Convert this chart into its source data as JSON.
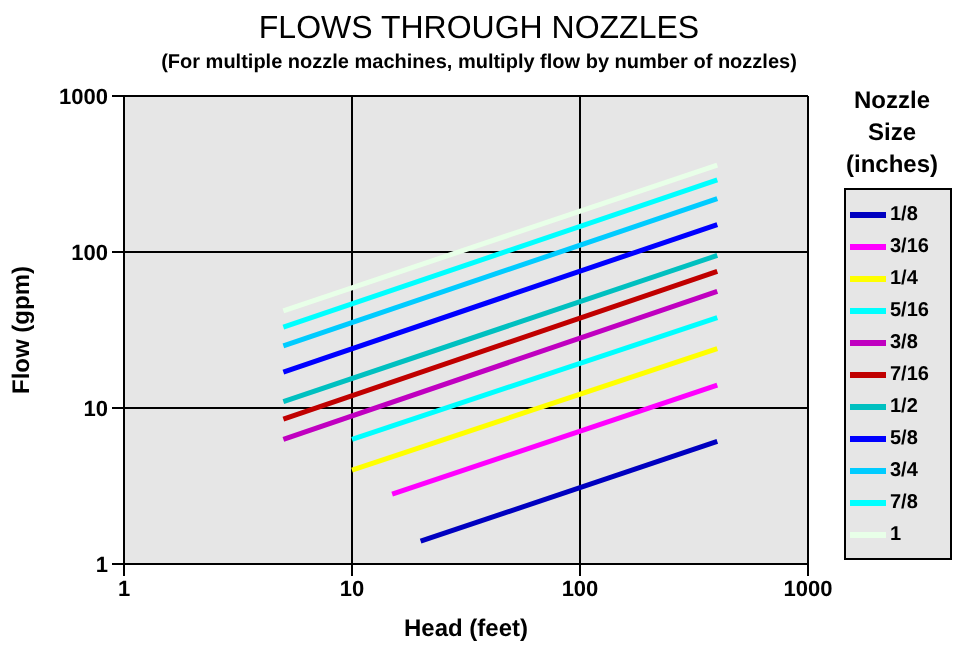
{
  "chart_data": {
    "type": "line",
    "title": "FLOWS THROUGH NOZZLES",
    "subtitle": "(For multiple nozzle machines, multiply flow by number of nozzles)",
    "xlabel": "Head (feet)",
    "ylabel": "Flow (gpm)",
    "legend_title": "Nozzle Size (inches)",
    "log": "xy",
    "grid": true,
    "legend": "right",
    "marker": "none",
    "line_style": "solid",
    "xlim": [
      1,
      1000
    ],
    "ylim": [
      1,
      1000
    ],
    "xticks": [
      1,
      10,
      100,
      1000
    ],
    "yticks": [
      1,
      10,
      100,
      1000
    ],
    "series": [
      {
        "name": "1/8",
        "color": "#0000c0",
        "x": [
          20,
          400
        ],
        "values": [
          1.4,
          6.1
        ]
      },
      {
        "name": "3/16",
        "color": "#ff00ff",
        "x": [
          15,
          400
        ],
        "values": [
          2.8,
          14
        ]
      },
      {
        "name": "1/4",
        "color": "#ffff00",
        "x": [
          10,
          400
        ],
        "values": [
          4,
          24
        ]
      },
      {
        "name": "5/16",
        "color": "#00ffff",
        "x": [
          10,
          400
        ],
        "values": [
          6.3,
          38
        ]
      },
      {
        "name": "3/8",
        "color": "#c000c0",
        "x": [
          5,
          400
        ],
        "values": [
          6.3,
          56
        ]
      },
      {
        "name": "7/16",
        "color": "#c00000",
        "x": [
          5,
          400
        ],
        "values": [
          8.5,
          75
        ]
      },
      {
        "name": "1/2",
        "color": "#00c0c0",
        "x": [
          5,
          400
        ],
        "values": [
          11,
          95
        ]
      },
      {
        "name": "5/8",
        "color": "#0000ff",
        "x": [
          5,
          400
        ],
        "values": [
          17,
          150
        ]
      },
      {
        "name": "3/4",
        "color": "#00ccff",
        "x": [
          5,
          400
        ],
        "values": [
          25,
          220
        ]
      },
      {
        "name": "7/8",
        "color": "#00ffff",
        "x": [
          5,
          400
        ],
        "values": [
          33,
          290
        ]
      },
      {
        "name": "1",
        "color": "#e8ffe8",
        "x": [
          5,
          400
        ],
        "values": [
          42,
          360
        ]
      }
    ]
  }
}
